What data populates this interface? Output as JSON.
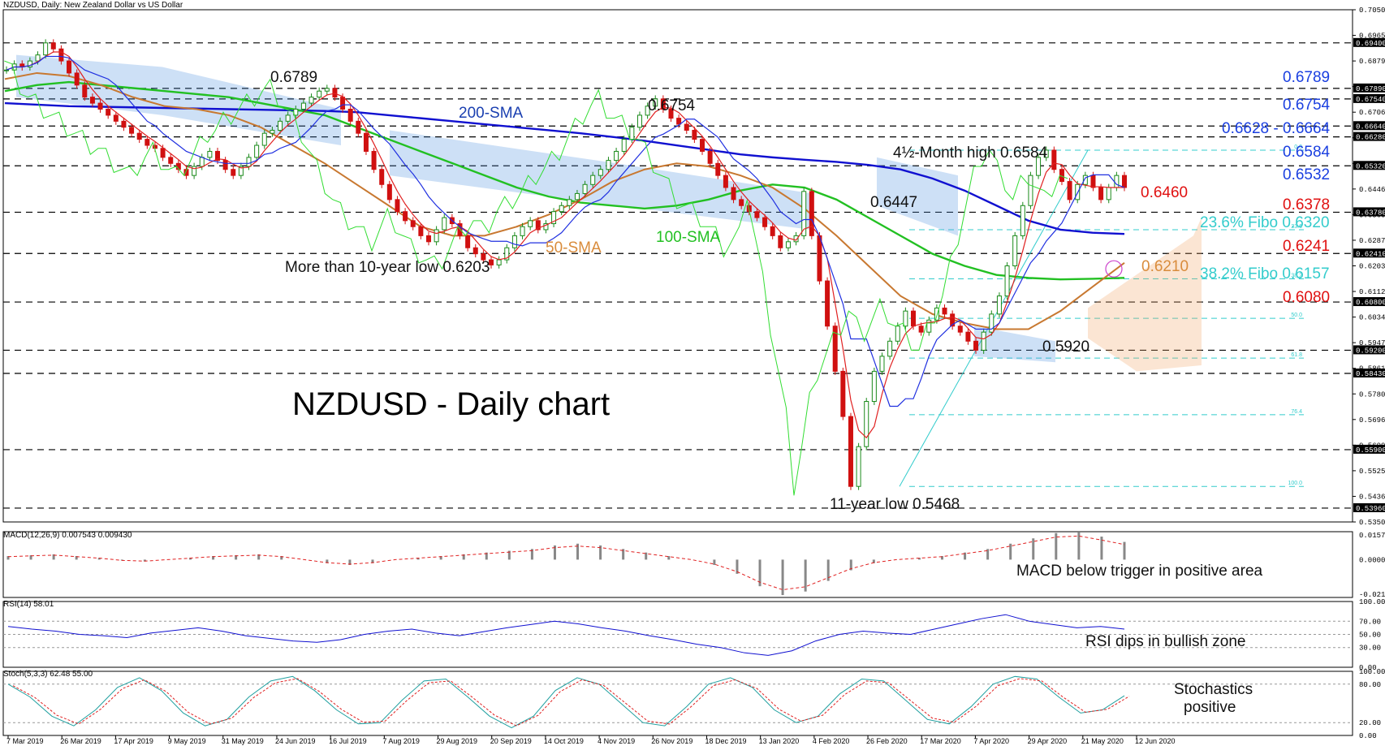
{
  "chart_data": {
    "type": "line",
    "symbol": "NZDUSD",
    "header": "NZDUSD, Daily:  New Zealand Dollar vs US Dollar",
    "title": "NZDUSD - Daily chart",
    "x_ticks": [
      "7 Mar 2019",
      "26 Mar 2019",
      "17 Apr 2019",
      "9 May 2019",
      "31 May 2019",
      "24 Jun 2019",
      "16 Jul 2019",
      "7 Aug 2019",
      "29 Aug 2019",
      "20 Sep 2019",
      "14 Oct 2019",
      "4 Nov 2019",
      "26 Nov 2019",
      "18 Dec 2019",
      "13 Jan 2020",
      "4 Feb 2020",
      "26 Feb 2020",
      "17 Mar 2020",
      "7 Apr 2020",
      "29 Apr 2020",
      "21 May 2020",
      "12 Jun 2020"
    ],
    "y_ticks": [
      "0.70500",
      "0.69650",
      "0.68790",
      "0.67925",
      "0.67060",
      "0.66195",
      "0.65330",
      "0.64465",
      "0.63600",
      "0.62875",
      "0.62030",
      "0.61125",
      "0.60340",
      "0.59475",
      "0.58610",
      "0.57805",
      "0.56960",
      "0.56095",
      "0.55250",
      "0.54365",
      "0.53500"
    ],
    "ylim": [
      0.535,
      0.705
    ],
    "horizontal_levels": [
      {
        "value": 0.694,
        "label": "0.69400"
      },
      {
        "value": 0.6789,
        "label": "0.67890"
      },
      {
        "value": 0.6754,
        "label": "0.67540"
      },
      {
        "value": 0.6664,
        "label": "0.66640"
      },
      {
        "value": 0.6628,
        "label": "0.66280"
      },
      {
        "value": 0.6532,
        "label": "0.65320"
      },
      {
        "value": 0.6378,
        "label": "0.63780"
      },
      {
        "value": 0.6241,
        "label": "0.62410"
      },
      {
        "value": 0.608,
        "label": "0.60800"
      },
      {
        "value": 0.592,
        "label": "0.59200"
      },
      {
        "value": 0.5843,
        "label": "0.58430"
      },
      {
        "value": 0.559,
        "label": "0.55900"
      },
      {
        "value": 0.5396,
        "label": "0.53960"
      }
    ],
    "fibo_levels": [
      {
        "value": 0.6584,
        "tag": "0.0"
      },
      {
        "value": 0.632,
        "tag": "23.6"
      },
      {
        "value": 0.6157,
        "tag": "38.2"
      },
      {
        "value": 0.6026,
        "tag": "50.0"
      },
      {
        "value": 0.5894,
        "tag": "61.8"
      },
      {
        "value": 0.5706,
        "tag": "76.4"
      },
      {
        "value": 0.5468,
        "tag": "100.0"
      }
    ],
    "price": [
      0.685,
      0.687,
      0.686,
      0.688,
      0.69,
      0.694,
      0.692,
      0.688,
      0.684,
      0.68,
      0.676,
      0.674,
      0.672,
      0.67,
      0.668,
      0.666,
      0.664,
      0.662,
      0.66,
      0.659,
      0.656,
      0.654,
      0.652,
      0.65,
      0.653,
      0.656,
      0.658,
      0.655,
      0.652,
      0.65,
      0.653,
      0.656,
      0.66,
      0.664,
      0.665,
      0.668,
      0.67,
      0.672,
      0.674,
      0.676,
      0.678,
      0.6789,
      0.676,
      0.672,
      0.668,
      0.664,
      0.658,
      0.652,
      0.647,
      0.642,
      0.638,
      0.635,
      0.633,
      0.63,
      0.628,
      0.632,
      0.636,
      0.634,
      0.63,
      0.626,
      0.624,
      0.622,
      0.6203,
      0.622,
      0.626,
      0.63,
      0.633,
      0.635,
      0.632,
      0.634,
      0.638,
      0.64,
      0.642,
      0.644,
      0.647,
      0.65,
      0.652,
      0.655,
      0.658,
      0.662,
      0.666,
      0.67,
      0.673,
      0.6754,
      0.672,
      0.669,
      0.667,
      0.665,
      0.662,
      0.658,
      0.654,
      0.65,
      0.646,
      0.642,
      0.64,
      0.638,
      0.636,
      0.633,
      0.63,
      0.626,
      0.628,
      0.63,
      0.6447,
      0.63,
      0.615,
      0.6,
      0.585,
      0.57,
      0.5468,
      0.56,
      0.575,
      0.585,
      0.59,
      0.595,
      0.6,
      0.605,
      0.6,
      0.598,
      0.602,
      0.606,
      0.604,
      0.6,
      0.598,
      0.595,
      0.592,
      0.598,
      0.604,
      0.61,
      0.62,
      0.63,
      0.64,
      0.65,
      0.656,
      0.6584,
      0.652,
      0.648,
      0.642,
      0.647,
      0.65,
      0.646,
      0.642,
      0.646,
      0.65,
      0.646
    ],
    "sma200": [
      0.674,
      0.6735,
      0.673,
      0.6728,
      0.6726,
      0.6724,
      0.6722,
      0.672,
      0.6718,
      0.6716,
      0.6714,
      0.671,
      0.67,
      0.669,
      0.668,
      0.667,
      0.666,
      0.665,
      0.664,
      0.6628,
      0.6615,
      0.66,
      0.6585,
      0.657,
      0.656,
      0.6552,
      0.6545,
      0.6535,
      0.652,
      0.649,
      0.645,
      0.64,
      0.635,
      0.632,
      0.631,
      0.6306
    ],
    "sma100": [
      0.678,
      0.68,
      0.681,
      0.68,
      0.679,
      0.678,
      0.677,
      0.676,
      0.674,
      0.672,
      0.67,
      0.666,
      0.662,
      0.658,
      0.654,
      0.65,
      0.646,
      0.643,
      0.641,
      0.64,
      0.639,
      0.64,
      0.642,
      0.645,
      0.647,
      0.646,
      0.642,
      0.636,
      0.63,
      0.624,
      0.62,
      0.617,
      0.616,
      0.6155,
      0.6157,
      0.616
    ],
    "sma50": [
      0.682,
      0.684,
      0.683,
      0.68,
      0.676,
      0.673,
      0.672,
      0.67,
      0.666,
      0.66,
      0.654,
      0.647,
      0.64,
      0.633,
      0.63,
      0.63,
      0.633,
      0.637,
      0.642,
      0.648,
      0.652,
      0.654,
      0.653,
      0.65,
      0.646,
      0.639,
      0.63,
      0.62,
      0.61,
      0.604,
      0.601,
      0.599,
      0.599,
      0.605,
      0.613,
      0.621
    ],
    "macd_hist": [
      0.002,
      0.0025,
      0.003,
      0.002,
      0.001,
      -0.0005,
      -0.001,
      0.0,
      0.001,
      0.002,
      0.0025,
      0.003,
      0.002,
      0.0,
      -0.002,
      -0.003,
      -0.002,
      0.0,
      0.001,
      0.002,
      0.003,
      0.004,
      0.005,
      0.006,
      0.008,
      0.009,
      0.008,
      0.006,
      0.004,
      0.002,
      0.0,
      -0.003,
      -0.008,
      -0.015,
      -0.02,
      -0.018,
      -0.012,
      -0.006,
      -0.002,
      0.0,
      0.001,
      0.002,
      0.004,
      0.006,
      0.009,
      0.012,
      0.015,
      0.0157,
      0.013,
      0.01
    ],
    "macd_label": "MACD(12,26,9) 0.007543 0.009430",
    "macd_ticks": [
      "0.015763",
      "0.000000",
      "-0.021341"
    ],
    "rsi": [
      62,
      58,
      55,
      50,
      48,
      45,
      52,
      56,
      60,
      55,
      48,
      44,
      40,
      38,
      42,
      50,
      55,
      58,
      52,
      48,
      54,
      60,
      65,
      70,
      66,
      60,
      55,
      48,
      42,
      35,
      30,
      22,
      18,
      25,
      40,
      50,
      55,
      52,
      50,
      58,
      66,
      74,
      80,
      70,
      65,
      60,
      62,
      58
    ],
    "rsi_label": "RSI(14) 58.01",
    "rsi_ticks": [
      "100.00",
      "70.00",
      "50.00",
      "30.00",
      "0.00"
    ],
    "stoch": [
      80,
      60,
      30,
      15,
      40,
      75,
      90,
      70,
      35,
      15,
      25,
      60,
      85,
      92,
      70,
      40,
      18,
      20,
      55,
      85,
      88,
      60,
      30,
      12,
      30,
      70,
      90,
      80,
      50,
      20,
      15,
      45,
      80,
      90,
      75,
      40,
      20,
      30,
      65,
      88,
      85,
      55,
      25,
      18,
      45,
      80,
      92,
      88,
      60,
      35,
      40,
      62
    ],
    "stoch_label": "Stoch(5,3,3) 62.48 55.00",
    "stoch_ticks": [
      "100.00",
      "80.00",
      "20.00",
      "0.00"
    ]
  },
  "annotations": {
    "p6789": "0.6789",
    "p6754": "0.6754",
    "sma200": "200-SMA",
    "sma100": "100-SMA",
    "sma50": "50-SMA",
    "low6203": "More than 10-year low 0.6203",
    "p6447": "0.6447",
    "high6584": "4½-Month high 0.6584",
    "p5920": "0.5920",
    "low5468": "11-year low 0.5468",
    "r6789": "0.6789",
    "r6754": "0.6754",
    "r6628": "0.6628 - 0.6664",
    "r6584": "0.6584",
    "r6532": "0.6532",
    "r6460": "0.6460",
    "r6378": "0.6378",
    "fibo236": "23.6% Fibo 0.6320",
    "r6241": "0.6241",
    "r6210": "0.6210",
    "fibo382": "38.2% Fibo 0.6157",
    "r6080": "0.6080",
    "macd_note": "MACD below trigger in positive area",
    "rsi_note": "RSI dips in bullish zone",
    "stoch_note1": "Stochastics",
    "stoch_note2": "positive"
  },
  "colors": {
    "price_up": "#1a8a1a",
    "price_down": "#d01010",
    "sma200": "#1010d0",
    "sma100": "#22c022",
    "sma50": "#c87830",
    "tenkan": "#e02020",
    "kijun": "#2030e0",
    "chikou": "#33dd33",
    "cloud_blue": "#4a90e0",
    "cloud_orange": "#f0a060",
    "fibo": "#33cccc"
  }
}
